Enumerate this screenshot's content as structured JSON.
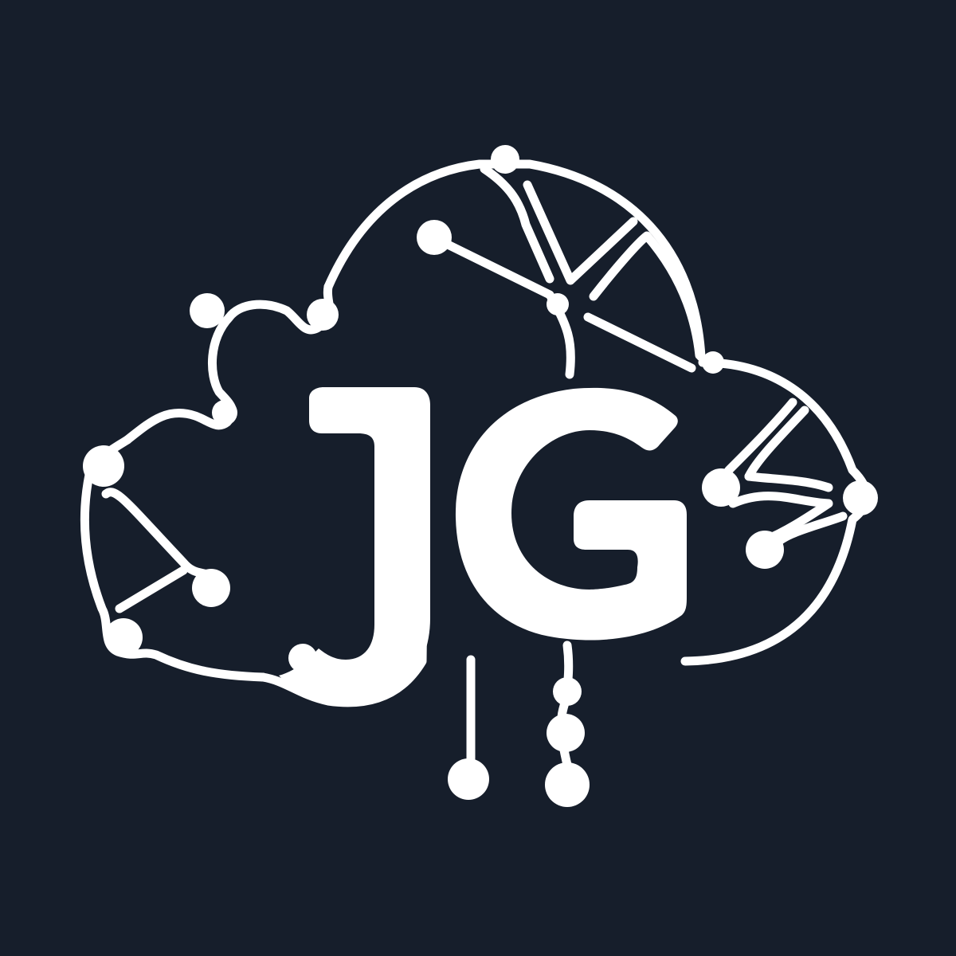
{
  "logo": {
    "monogram": "JG",
    "background_color": "#161E2B",
    "foreground_color": "#FFFFFF",
    "icon": "cloud-network-icon"
  }
}
